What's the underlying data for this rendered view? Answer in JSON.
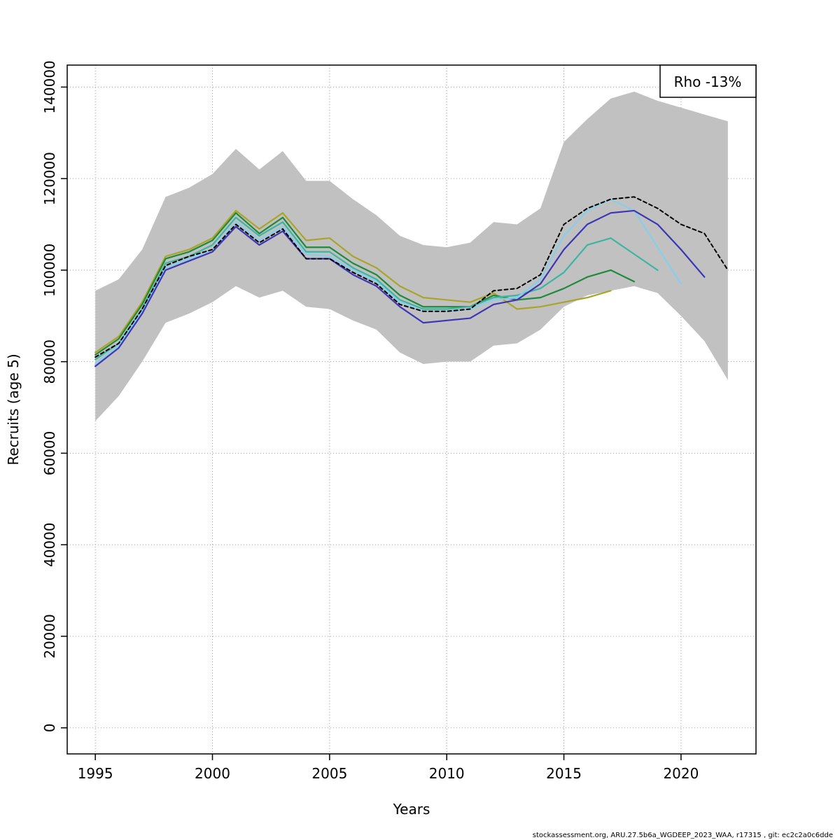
{
  "figure": {
    "footer": "stockassessment.org, ARU.27.5b6a_WGDEEP_2023_WAA, r17315 , git: ec2c2a0c6dde"
  },
  "chart_data": {
    "type": "line",
    "title": "",
    "xlabel": "Years",
    "ylabel": "Recruits (age 5)",
    "legend_label": "Rho -13%",
    "legend_position": "top-right",
    "grid": true,
    "xlim": [
      1993.8,
      2023.2
    ],
    "ylim": [
      -5700,
      144800
    ],
    "xticks": [
      1995,
      2000,
      2005,
      2010,
      2015,
      2020
    ],
    "yticks": [
      0,
      20000,
      40000,
      60000,
      80000,
      100000,
      120000,
      140000
    ],
    "band": {
      "name": "confidence-band",
      "color": "#c1c1c1",
      "start_year": 1995,
      "end_year": 2022,
      "lower": [
        67000,
        72500,
        80000,
        88500,
        90500,
        93000,
        96500,
        94000,
        95500,
        92000,
        91500,
        89000,
        87000,
        82000,
        79500,
        80000,
        80000,
        83500,
        84000,
        87000,
        92000,
        94500,
        95500,
        96500,
        95000,
        90000,
        84500,
        76000
      ],
      "upper": [
        95500,
        98000,
        104500,
        116000,
        118000,
        121000,
        126500,
        122000,
        126000,
        119500,
        119500,
        115500,
        112000,
        107500,
        105500,
        105000,
        106000,
        110500,
        110000,
        113500,
        128000,
        133000,
        137500,
        139000,
        137000,
        135500,
        134000,
        132500
      ]
    },
    "series": [
      {
        "id": "retro-peel-2017",
        "color": "#a9a42a",
        "dashed": false,
        "width": 2.2,
        "start_year": 1995,
        "end_year": 2017,
        "values": [
          82000,
          85500,
          93000,
          103000,
          104500,
          107000,
          113000,
          109000,
          112500,
          106500,
          107000,
          103000,
          100500,
          96500,
          94000,
          93500,
          93000,
          95000,
          91500,
          92000,
          93000,
          94000,
          95500
        ]
      },
      {
        "id": "retro-peel-2018",
        "color": "#1f8a3b",
        "dashed": false,
        "width": 2.2,
        "start_year": 1995,
        "end_year": 2018,
        "values": [
          81500,
          85000,
          92500,
          102500,
          104000,
          106500,
          112500,
          108000,
          111500,
          105000,
          105000,
          101500,
          99000,
          94500,
          92000,
          92000,
          92000,
          94500,
          93500,
          94000,
          96000,
          98500,
          100000,
          97500
        ]
      },
      {
        "id": "retro-peel-2019",
        "color": "#3cb6a3",
        "dashed": false,
        "width": 2.2,
        "start_year": 1995,
        "end_year": 2019,
        "values": [
          80500,
          84000,
          91500,
          101500,
          103000,
          105500,
          111500,
          107500,
          110500,
          104000,
          104000,
          100500,
          98000,
          93500,
          91500,
          91500,
          92000,
          94000,
          94500,
          96000,
          99500,
          105500,
          107000,
          103500,
          100000
        ]
      },
      {
        "id": "retro-peel-2020",
        "color": "#85cfec",
        "dashed": false,
        "width": 2.2,
        "start_year": 1995,
        "end_year": 2020,
        "values": [
          79500,
          83500,
          91000,
          100500,
          102500,
          104500,
          110500,
          106500,
          109500,
          103500,
          103000,
          100000,
          97500,
          93000,
          91000,
          91000,
          91500,
          93500,
          94000,
          98000,
          107500,
          113000,
          115500,
          113000,
          105000,
          97000
        ]
      },
      {
        "id": "retro-peel-2021",
        "color": "#3d35b4",
        "dashed": false,
        "width": 2.2,
        "start_year": 1995,
        "end_year": 2021,
        "values": [
          79000,
          83000,
          90500,
          100000,
          102000,
          104000,
          109500,
          105500,
          108500,
          102500,
          102500,
          99000,
          96500,
          92000,
          88500,
          89000,
          89500,
          92500,
          93500,
          97000,
          104500,
          110000,
          112500,
          113000,
          110000,
          104500,
          98500
        ]
      },
      {
        "id": "base-run-2022",
        "color": "#000000",
        "dashed": true,
        "width": 2,
        "start_year": 1995,
        "end_year": 2022,
        "values": [
          81000,
          84000,
          91500,
          101000,
          103000,
          104500,
          110000,
          106000,
          109000,
          102500,
          102500,
          99500,
          97000,
          92500,
          91000,
          91000,
          91500,
          95500,
          96000,
          99000,
          110000,
          113500,
          115500,
          116000,
          113500,
          110000,
          108000,
          100000
        ]
      }
    ]
  }
}
